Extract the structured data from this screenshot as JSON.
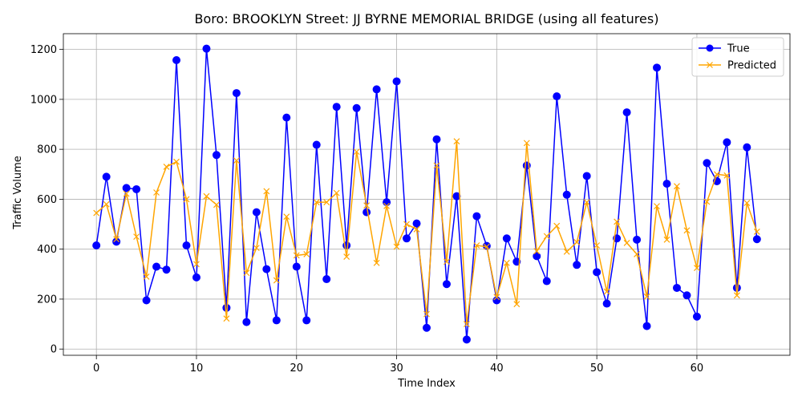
{
  "chart_data": {
    "type": "line",
    "title": "Boro: BROOKLYN Street: JJ BYRNE MEMORIAL BRIDGE (using all features)",
    "xlabel": "Time Index",
    "ylabel": "Traffic Volume",
    "xlim": [
      -3.3,
      69.3
    ],
    "ylim": [
      -25,
      1263
    ],
    "xticks": [
      0,
      10,
      20,
      30,
      40,
      50,
      60
    ],
    "yticks": [
      0,
      200,
      400,
      600,
      800,
      1000,
      1200
    ],
    "grid": true,
    "legend_position": "top-right",
    "series": [
      {
        "name": "True",
        "color": "#0000ff",
        "marker": "circle",
        "values": [
          415,
          690,
          430,
          645,
          640,
          195,
          330,
          318,
          1157,
          415,
          287,
          1203,
          777,
          165,
          1025,
          108,
          548,
          320,
          115,
          927,
          330,
          115,
          818,
          280,
          970,
          415,
          965,
          548,
          1040,
          588,
          1072,
          443,
          503,
          85,
          840,
          260,
          612,
          38,
          532,
          413,
          195,
          443,
          350,
          735,
          372,
          272,
          1012,
          618,
          337,
          693,
          308,
          182,
          443,
          948,
          438,
          92,
          1127,
          662,
          245,
          215,
          130,
          745,
          672,
          828,
          245,
          808,
          440
        ]
      },
      {
        "name": "Predicted",
        "color": "#ffa500",
        "marker": "x",
        "values": [
          545,
          580,
          440,
          622,
          450,
          290,
          627,
          730,
          750,
          600,
          340,
          612,
          578,
          122,
          755,
          305,
          405,
          632,
          275,
          530,
          375,
          380,
          588,
          588,
          625,
          370,
          790,
          575,
          345,
          573,
          410,
          500,
          480,
          140,
          735,
          350,
          832,
          100,
          415,
          410,
          208,
          345,
          180,
          825,
          392,
          452,
          493,
          390,
          428,
          588,
          415,
          230,
          510,
          425,
          380,
          210,
          572,
          438,
          652,
          475,
          325,
          590,
          700,
          695,
          215,
          585,
          470
        ]
      }
    ]
  }
}
